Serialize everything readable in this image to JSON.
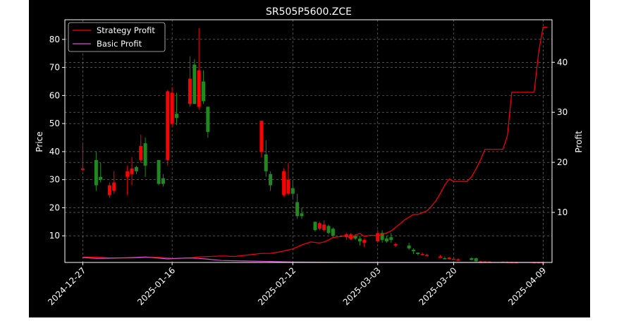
{
  "chart_data": {
    "type": "candlestick+line",
    "title": "SR505P5600.ZCE",
    "ylabel_left": "Price",
    "ylabel_right": "Profit",
    "ylim_left": [
      0.5,
      87
    ],
    "ylim_right": [
      0,
      48.5
    ],
    "yticks_left": [
      10,
      20,
      30,
      40,
      50,
      60,
      70,
      80
    ],
    "yticks_right": [
      10,
      20,
      30,
      40
    ],
    "grid": true,
    "legend_placement": "top-left",
    "colors": {
      "background": "#000000",
      "axes": "#ffffff",
      "grid": "#808080",
      "up": "#1f8a1f",
      "down": "#ff0000",
      "strategy": "#ff0000",
      "basic": "#d24fd2"
    },
    "xaxis": {
      "start": "2024-12-23",
      "end": "2025-04-11",
      "ticks": [
        "2024-12-27",
        "2025-01-16",
        "2025-02-12",
        "2025-03-03",
        "2025-03-20",
        "2025-04-09"
      ]
    },
    "candles": [
      {
        "date": "2024-12-27",
        "open": 33.5,
        "high": 43,
        "low": 33,
        "close": 34,
        "color": "down"
      },
      {
        "date": "2024-12-30",
        "open": 28,
        "high": 40,
        "low": 26,
        "close": 37,
        "color": "up"
      },
      {
        "date": "2024-12-31",
        "open": 30,
        "high": 36,
        "low": 29,
        "close": 31,
        "color": "up"
      },
      {
        "date": "2025-01-02",
        "open": 28,
        "high": 29,
        "low": 23.5,
        "close": 24.5,
        "color": "down"
      },
      {
        "date": "2025-01-03",
        "open": 29,
        "high": 33,
        "low": 25,
        "close": 26,
        "color": "down"
      },
      {
        "date": "2025-01-06",
        "open": 33,
        "high": 35,
        "low": 24.5,
        "close": 31,
        "color": "down"
      },
      {
        "date": "2025-01-07",
        "open": 34,
        "high": 38,
        "low": 28,
        "close": 32,
        "color": "down"
      },
      {
        "date": "2025-01-08",
        "open": 33,
        "high": 35,
        "low": 32,
        "close": 34.5,
        "color": "up"
      },
      {
        "date": "2025-01-09",
        "open": 42,
        "high": 46,
        "low": 36,
        "close": 37,
        "color": "down"
      },
      {
        "date": "2025-01-10",
        "open": 35,
        "high": 45,
        "low": 31,
        "close": 43,
        "color": "up"
      },
      {
        "date": "2025-01-13",
        "open": 28.5,
        "high": 37,
        "low": 28,
        "close": 37,
        "color": "up"
      },
      {
        "date": "2025-01-14",
        "open": 28.5,
        "high": 32,
        "low": 27.5,
        "close": 30.5,
        "color": "up"
      },
      {
        "date": "2025-01-15",
        "open": 61.5,
        "high": 62,
        "low": 35,
        "close": 37,
        "color": "down"
      },
      {
        "date": "2025-01-16",
        "open": 61,
        "high": 63,
        "low": 49,
        "close": 50,
        "color": "down"
      },
      {
        "date": "2025-01-17",
        "open": 52,
        "high": 61,
        "low": 49.5,
        "close": 53.5,
        "color": "up"
      },
      {
        "date": "2025-01-20",
        "open": 66,
        "high": 74,
        "low": 56,
        "close": 57,
        "color": "down"
      },
      {
        "date": "2025-01-21",
        "open": 57,
        "high": 73,
        "low": 57,
        "close": 71,
        "color": "up"
      },
      {
        "date": "2025-01-22",
        "open": 69,
        "high": 84,
        "low": 55,
        "close": 56,
        "color": "down"
      },
      {
        "date": "2025-01-23",
        "open": 58,
        "high": 69,
        "low": 57,
        "close": 65,
        "color": "up"
      },
      {
        "date": "2025-01-24",
        "open": 47,
        "high": 56,
        "low": 45,
        "close": 56,
        "color": "up"
      },
      {
        "date": "2025-02-05",
        "open": 51,
        "high": 51,
        "low": 38,
        "close": 40,
        "color": "down"
      },
      {
        "date": "2025-02-06",
        "open": 33,
        "high": 44,
        "low": 31,
        "close": 39,
        "color": "up"
      },
      {
        "date": "2025-02-07",
        "open": 28,
        "high": 33,
        "low": 26,
        "close": 32,
        "color": "up"
      },
      {
        "date": "2025-02-10",
        "open": 33,
        "high": 34,
        "low": 24,
        "close": 24.5,
        "color": "down"
      },
      {
        "date": "2025-02-11",
        "open": 25,
        "high": 36,
        "low": 24.5,
        "close": 30,
        "color": "down"
      },
      {
        "date": "2025-02-12",
        "open": 27,
        "high": 30,
        "low": 23.5,
        "close": 25,
        "color": "up"
      },
      {
        "date": "2025-02-13",
        "open": 17,
        "high": 25,
        "low": 16,
        "close": 22,
        "color": "up"
      },
      {
        "date": "2025-02-14",
        "open": 17,
        "high": 20,
        "low": 16,
        "close": 18,
        "color": "up"
      },
      {
        "date": "2025-02-17",
        "open": 12,
        "high": 15,
        "low": 11.5,
        "close": 15,
        "color": "up"
      },
      {
        "date": "2025-02-18",
        "open": 14.5,
        "high": 15,
        "low": 12,
        "close": 12.5,
        "color": "down"
      },
      {
        "date": "2025-02-19",
        "open": 14,
        "high": 15.5,
        "low": 11.5,
        "close": 12,
        "color": "down"
      },
      {
        "date": "2025-02-20",
        "open": 11,
        "high": 14,
        "low": 10.5,
        "close": 13.5,
        "color": "up"
      },
      {
        "date": "2025-02-21",
        "open": 10,
        "high": 13,
        "low": 9.5,
        "close": 12.5,
        "color": "up"
      },
      {
        "date": "2025-02-24",
        "open": 9.5,
        "high": 11,
        "low": 8.5,
        "close": 10.5,
        "color": "down"
      },
      {
        "date": "2025-02-25",
        "open": 10.5,
        "high": 11,
        "low": 8.5,
        "close": 9,
        "color": "down"
      },
      {
        "date": "2025-02-26",
        "open": 9,
        "high": 10.5,
        "low": 8.5,
        "close": 10,
        "color": "up"
      },
      {
        "date": "2025-02-27",
        "open": 8,
        "high": 10,
        "low": 6.5,
        "close": 9,
        "color": "up"
      },
      {
        "date": "2025-02-28",
        "open": 7.5,
        "high": 9,
        "low": 6,
        "close": 8.5,
        "color": "down"
      },
      {
        "date": "2025-03-03",
        "open": 11,
        "high": 12,
        "low": 7.5,
        "close": 8,
        "color": "down"
      },
      {
        "date": "2025-03-04",
        "open": 11,
        "high": 12,
        "low": 7.5,
        "close": 8.5,
        "color": "up"
      },
      {
        "date": "2025-03-05",
        "open": 8,
        "high": 10,
        "low": 7.5,
        "close": 9,
        "color": "up"
      },
      {
        "date": "2025-03-06",
        "open": 8.5,
        "high": 11,
        "low": 7.5,
        "close": 9.5,
        "color": "up"
      },
      {
        "date": "2025-03-07",
        "open": 7,
        "high": 7.5,
        "low": 6,
        "close": 6.5,
        "color": "down"
      },
      {
        "date": "2025-03-10",
        "open": 6.5,
        "high": 7.5,
        "low": 5,
        "close": 5.5,
        "color": "up"
      },
      {
        "date": "2025-03-11",
        "open": 4.5,
        "high": 5.5,
        "low": 3.5,
        "close": 5,
        "color": "up"
      },
      {
        "date": "2025-03-12",
        "open": 3.5,
        "high": 4,
        "low": 3,
        "close": 4,
        "color": "up"
      },
      {
        "date": "2025-03-13",
        "open": 3.5,
        "high": 4,
        "low": 3,
        "close": 3.2,
        "color": "down"
      },
      {
        "date": "2025-03-14",
        "open": 3.2,
        "high": 3.6,
        "low": 2.8,
        "close": 3,
        "color": "down"
      },
      {
        "date": "2025-03-17",
        "open": 2.6,
        "high": 3.2,
        "low": 2.3,
        "close": 2.4,
        "color": "down"
      },
      {
        "date": "2025-03-18",
        "open": 2,
        "high": 2.6,
        "low": 1.8,
        "close": 1.9,
        "color": "up"
      },
      {
        "date": "2025-03-19",
        "open": 2.2,
        "high": 2.5,
        "low": 1.6,
        "close": 1.7,
        "color": "down"
      },
      {
        "date": "2025-03-20",
        "open": 1.8,
        "high": 2.4,
        "low": 1.5,
        "close": 1.6,
        "color": "down"
      },
      {
        "date": "2025-03-21",
        "open": 1.6,
        "high": 2,
        "low": 1.4,
        "close": 1.5,
        "color": "down"
      },
      {
        "date": "2025-03-24",
        "open": 1.4,
        "high": 2.4,
        "low": 1.2,
        "close": 2,
        "color": "up"
      },
      {
        "date": "2025-03-25",
        "open": 2,
        "high": 2.2,
        "low": 0.8,
        "close": 0.9,
        "color": "up"
      },
      {
        "date": "2025-03-26",
        "open": 0.9,
        "high": 1.1,
        "low": 0.8,
        "close": 0.85,
        "color": "down"
      },
      {
        "date": "2025-03-27",
        "open": 0.85,
        "high": 1,
        "low": 0.75,
        "close": 0.8,
        "color": "down"
      },
      {
        "date": "2025-03-28",
        "open": 0.8,
        "high": 0.95,
        "low": 0.7,
        "close": 0.75,
        "color": "down"
      },
      {
        "date": "2025-03-31",
        "open": 0.75,
        "high": 0.9,
        "low": 0.65,
        "close": 0.7,
        "color": "down"
      },
      {
        "date": "2025-04-01",
        "open": 0.7,
        "high": 0.85,
        "low": 0.6,
        "close": 0.65,
        "color": "down"
      },
      {
        "date": "2025-04-02",
        "open": 0.65,
        "high": 0.8,
        "low": 0.55,
        "close": 0.6,
        "color": "down"
      },
      {
        "date": "2025-04-03",
        "open": 0.6,
        "high": 0.75,
        "low": 0.55,
        "close": 0.58,
        "color": "down"
      },
      {
        "date": "2025-04-07",
        "open": 0.58,
        "high": 0.7,
        "low": 0.52,
        "close": 0.55,
        "color": "down"
      },
      {
        "date": "2025-04-08",
        "open": 0.56,
        "high": 0.66,
        "low": 0.52,
        "close": 0.54,
        "color": "down"
      },
      {
        "date": "2025-04-09",
        "open": 0.55,
        "high": 0.65,
        "low": 0.5,
        "close": 0.52,
        "color": "down"
      }
    ],
    "series": [
      {
        "name": "Strategy Profit",
        "axis": "right",
        "points": [
          [
            "2024-12-27",
            1.0
          ],
          [
            "2024-12-28",
            1.1
          ],
          [
            "2024-12-31",
            1.0
          ],
          [
            "2025-01-02",
            0.9
          ],
          [
            "2025-01-06",
            0.9
          ],
          [
            "2025-01-09",
            0.95
          ],
          [
            "2025-01-10",
            1.0
          ],
          [
            "2025-01-13",
            1.0
          ],
          [
            "2025-01-15",
            0.9
          ],
          [
            "2025-01-16",
            0.8
          ],
          [
            "2025-01-20",
            0.9
          ],
          [
            "2025-01-22",
            1.1
          ],
          [
            "2025-01-27",
            1.3
          ],
          [
            "2025-01-30",
            1.2
          ],
          [
            "2025-02-02",
            1.5
          ],
          [
            "2025-02-05",
            1.8
          ],
          [
            "2025-02-07",
            1.8
          ],
          [
            "2025-02-09",
            2.1
          ],
          [
            "2025-02-12",
            2.7
          ],
          [
            "2025-02-14",
            3.5
          ],
          [
            "2025-02-16",
            4.1
          ],
          [
            "2025-02-18",
            3.9
          ],
          [
            "2025-02-19",
            4.1
          ],
          [
            "2025-02-20",
            4.5
          ],
          [
            "2025-02-21",
            5.0
          ],
          [
            "2025-02-23",
            5.2
          ],
          [
            "2025-02-24",
            5.5
          ],
          [
            "2025-02-25",
            4.6
          ],
          [
            "2025-02-26",
            5.5
          ],
          [
            "2025-02-27",
            5.8
          ],
          [
            "2025-02-28",
            5.2
          ],
          [
            "2025-03-01",
            5.4
          ],
          [
            "2025-03-03",
            5.4
          ],
          [
            "2025-03-04",
            5.6
          ],
          [
            "2025-03-05",
            5.9
          ],
          [
            "2025-03-06",
            6.3
          ],
          [
            "2025-03-07",
            7.0
          ],
          [
            "2025-03-09",
            8.5
          ],
          [
            "2025-03-11",
            9.6
          ],
          [
            "2025-03-12",
            9.6
          ],
          [
            "2025-03-14",
            10.3
          ],
          [
            "2025-03-15",
            11.2
          ],
          [
            "2025-03-16",
            12.3
          ],
          [
            "2025-03-17",
            13.8
          ],
          [
            "2025-03-18",
            15.5
          ],
          [
            "2025-03-19",
            16.7
          ],
          [
            "2025-03-20",
            16.2
          ],
          [
            "2025-03-21",
            16.2
          ],
          [
            "2025-03-23",
            16.2
          ],
          [
            "2025-03-24",
            17.1
          ],
          [
            "2025-03-25",
            18.7
          ],
          [
            "2025-03-26",
            20.5
          ],
          [
            "2025-03-27",
            22.6
          ],
          [
            "2025-03-31",
            22.6
          ],
          [
            "2025-04-01",
            25.3
          ],
          [
            "2025-04-02",
            34.0
          ],
          [
            "2025-04-07",
            34.0
          ],
          [
            "2025-04-08",
            42.0
          ],
          [
            "2025-04-09",
            47.0
          ],
          [
            "2025-04-10",
            47.0
          ]
        ]
      },
      {
        "name": "Basic Profit",
        "axis": "right",
        "points": [
          [
            "2024-12-27",
            1.0
          ],
          [
            "2024-12-30",
            0.8
          ],
          [
            "2025-01-02",
            0.85
          ],
          [
            "2025-01-06",
            0.95
          ],
          [
            "2025-01-08",
            1.0
          ],
          [
            "2025-01-10",
            1.1
          ],
          [
            "2025-01-12",
            0.95
          ],
          [
            "2025-01-15",
            0.7
          ],
          [
            "2025-01-17",
            0.8
          ],
          [
            "2025-01-20",
            0.9
          ],
          [
            "2025-01-22",
            0.8
          ],
          [
            "2025-01-24",
            0.65
          ],
          [
            "2025-01-27",
            0.4
          ],
          [
            "2025-02-01",
            0.3
          ],
          [
            "2025-02-07",
            0.2
          ],
          [
            "2025-02-12",
            0.1
          ],
          [
            "2025-02-20",
            0.05
          ],
          [
            "2025-03-01",
            0.0
          ],
          [
            "2025-04-09",
            0.0
          ]
        ]
      }
    ]
  }
}
